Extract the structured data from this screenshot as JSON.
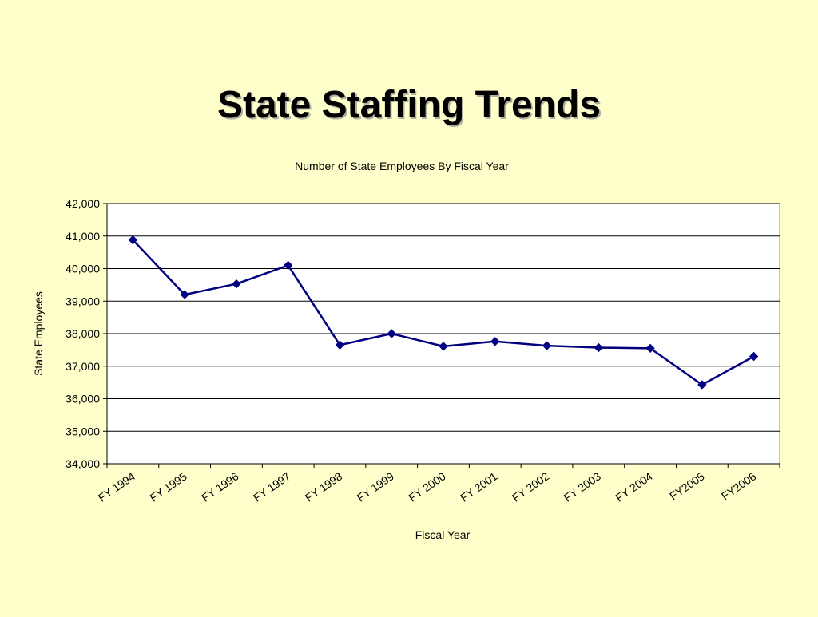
{
  "slide": {
    "title": "State Staffing Trends"
  },
  "chart_data": {
    "type": "line",
    "title": "Number of State Employees By Fiscal Year",
    "xlabel": "Fiscal Year",
    "ylabel": "State Employees",
    "ylim": [
      34000,
      42000
    ],
    "yticks": [
      34000,
      35000,
      36000,
      37000,
      38000,
      39000,
      40000,
      41000,
      42000
    ],
    "ytick_labels": [
      "34,000",
      "35,000",
      "36,000",
      "37,000",
      "38,000",
      "39,000",
      "40,000",
      "41,000",
      "42,000"
    ],
    "grid": true,
    "legend": "none",
    "categories": [
      "FY 1994",
      "FY 1995",
      "FY 1996",
      "FY 1997",
      "FY 1998",
      "FY 1999",
      "FY 2000",
      "FY 2001",
      "FY 2002",
      "FY 2003",
      "FY 2004",
      "FY2005",
      "FY2006"
    ],
    "series": [
      {
        "values": [
          40880,
          39200,
          39530,
          40100,
          37650,
          38000,
          37610,
          37760,
          37630,
          37570,
          37550,
          36430,
          37300
        ],
        "color": "#000080"
      }
    ]
  }
}
